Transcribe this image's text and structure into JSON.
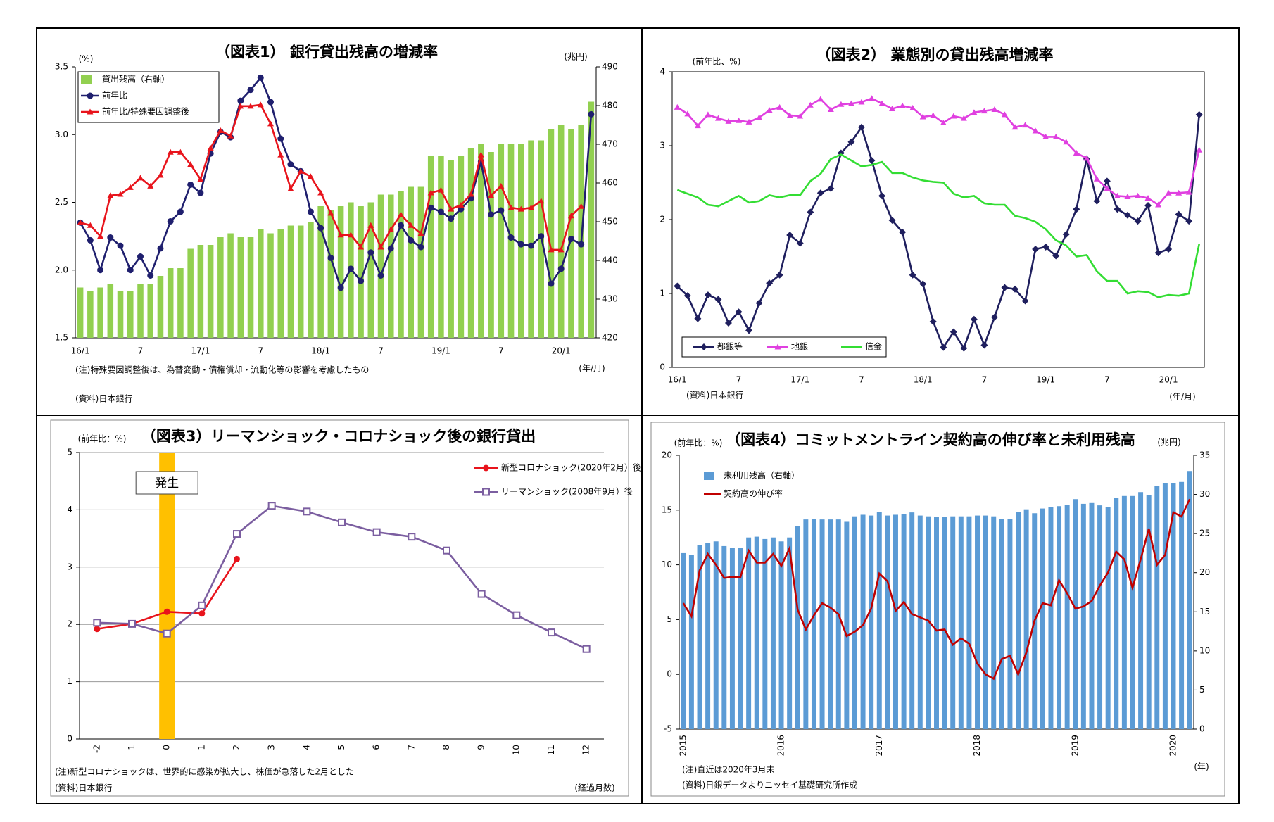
{
  "chart_data": [
    {
      "type": "combo",
      "title": "（図表1） 銀行貸出残高の増減率",
      "y_label": "(%)",
      "y2_label": "(兆円)",
      "x_label": "(年/月)",
      "notes": [
        "(注)特殊要因調整後は、為替変動・債権償却・流動化等の影響を考慮したもの",
        "(資料)日本銀行"
      ],
      "categories": [
        "16/1",
        null,
        null,
        null,
        null,
        null,
        "7",
        null,
        null,
        null,
        null,
        null,
        "17/1",
        null,
        null,
        null,
        null,
        null,
        "7",
        null,
        null,
        null,
        null,
        null,
        "18/1",
        null,
        null,
        null,
        null,
        null,
        "7",
        null,
        null,
        null,
        null,
        null,
        "19/1",
        null,
        null,
        null,
        null,
        null,
        "7",
        null,
        null,
        null,
        null,
        null,
        "20/1",
        null,
        null,
        null
      ],
      "ylim": [
        1.5,
        3.5
      ],
      "yticks": [
        1.5,
        {
          "value": 2,
          "label": "2.0"
        },
        2.5,
        {
          "value": 3,
          "label": "3.0"
        },
        3.5
      ],
      "y2lim": [
        420,
        490
      ],
      "y2ticks": [
        420,
        430,
        440,
        450,
        460,
        470,
        480,
        490
      ],
      "grid": false,
      "legend": "upper left",
      "series": [
        {
          "name": "貸出残高（右軸）",
          "type": "bar",
          "axis": "y2",
          "color": "#92d050",
          "values": [
            433,
            432,
            433,
            434,
            432,
            432,
            434,
            434,
            436,
            438,
            438,
            443,
            444,
            444,
            446,
            447,
            446,
            446,
            448,
            447,
            448,
            449,
            449,
            450,
            454,
            453,
            454,
            455,
            454,
            455,
            457,
            457,
            458,
            459,
            459,
            467,
            467,
            466,
            467,
            469,
            470,
            468,
            470,
            470,
            470,
            471,
            471,
            474,
            475,
            474,
            475,
            481
          ]
        },
        {
          "name": "前年比",
          "type": "line",
          "marker": "circle",
          "color": "#1f1f6e",
          "values": [
            2.35,
            2.22,
            2.0,
            2.24,
            2.18,
            2.0,
            2.1,
            1.96,
            2.16,
            2.36,
            2.43,
            2.63,
            2.57,
            2.86,
            3.02,
            2.98,
            3.25,
            3.33,
            3.42,
            3.24,
            2.97,
            2.78,
            2.73,
            2.43,
            2.31,
            2.09,
            1.87,
            2.01,
            1.92,
            2.13,
            1.96,
            2.16,
            2.33,
            2.22,
            2.17,
            2.46,
            2.43,
            2.38,
            2.45,
            2.53,
            2.8,
            2.41,
            2.44,
            2.24,
            2.19,
            2.18,
            2.25,
            1.9,
            2.01,
            2.23,
            2.19,
            3.15
          ]
        },
        {
          "name": "前年比/特殊要因調整後",
          "type": "line",
          "marker": "triangle",
          "color": "#e8141c",
          "values": [
            2.35,
            2.33,
            2.25,
            2.55,
            2.56,
            2.61,
            2.68,
            2.62,
            2.7,
            2.87,
            2.87,
            2.78,
            2.67,
            2.9,
            3.03,
            2.99,
            3.21,
            3.21,
            3.22,
            3.08,
            2.85,
            2.6,
            2.73,
            2.69,
            2.57,
            2.42,
            2.26,
            2.26,
            2.17,
            2.33,
            2.17,
            2.3,
            2.41,
            2.33,
            2.27,
            2.57,
            2.59,
            2.45,
            2.48,
            2.56,
            2.85,
            2.55,
            2.62,
            2.46,
            2.45,
            2.46,
            2.51,
            2.15,
            2.15,
            2.4,
            2.47,
            null
          ]
        }
      ]
    },
    {
      "type": "line",
      "title": "（図表2） 業態別の貸出残高増減率",
      "y_label": "(前年比、%)",
      "x_label": "(年/月)",
      "notes": [
        "(資料)日本銀行"
      ],
      "categories": [
        "16/1",
        null,
        null,
        null,
        null,
        null,
        "7",
        null,
        null,
        null,
        null,
        null,
        "17/1",
        null,
        null,
        null,
        null,
        null,
        "7",
        null,
        null,
        null,
        null,
        null,
        "18/1",
        null,
        null,
        null,
        null,
        null,
        "7",
        null,
        null,
        null,
        null,
        null,
        "19/1",
        null,
        null,
        null,
        null,
        null,
        "7",
        null,
        null,
        null,
        null,
        null,
        "20/1",
        null,
        null,
        null
      ],
      "ylim": [
        0,
        4
      ],
      "yticks": [
        0,
        1,
        2,
        3,
        4
      ],
      "grid": false,
      "legend": "lower left",
      "series": [
        {
          "name": "都銀等",
          "type": "line",
          "marker": "diamond",
          "color": "#1f1f5e",
          "values": [
            1.1,
            0.97,
            0.66,
            0.98,
            0.92,
            0.6,
            0.75,
            0.5,
            0.87,
            1.14,
            1.25,
            1.79,
            1.68,
            2.1,
            2.36,
            2.42,
            2.9,
            3.05,
            3.25,
            2.8,
            2.32,
            1.99,
            1.83,
            1.25,
            1.13,
            0.62,
            0.27,
            0.48,
            0.26,
            0.65,
            0.3,
            0.68,
            1.08,
            1.06,
            0.9,
            1.6,
            1.63,
            1.51,
            1.8,
            2.14,
            2.82,
            2.25,
            2.52,
            2.14,
            2.06,
            1.98,
            2.19,
            1.55,
            1.6,
            2.07,
            1.98,
            3.42
          ]
        },
        {
          "name": "地銀",
          "type": "line",
          "marker": "triangle",
          "color": "#e040e0",
          "values": [
            3.52,
            3.43,
            3.27,
            3.42,
            3.37,
            3.33,
            3.34,
            3.32,
            3.38,
            3.48,
            3.52,
            3.41,
            3.4,
            3.55,
            3.63,
            3.49,
            3.56,
            3.57,
            3.59,
            3.64,
            3.57,
            3.5,
            3.54,
            3.51,
            3.39,
            3.41,
            3.31,
            3.4,
            3.37,
            3.45,
            3.47,
            3.49,
            3.42,
            3.25,
            3.28,
            3.2,
            3.12,
            3.12,
            3.05,
            2.9,
            2.83,
            2.55,
            2.42,
            2.32,
            2.31,
            2.32,
            2.29,
            2.2,
            2.36,
            2.36,
            2.37,
            2.94
          ]
        },
        {
          "name": "信金",
          "type": "line",
          "marker": null,
          "color": "#33dd33",
          "values": [
            2.4,
            2.35,
            2.3,
            2.2,
            2.18,
            2.25,
            2.32,
            2.23,
            2.25,
            2.33,
            2.3,
            2.33,
            2.33,
            2.52,
            2.62,
            2.82,
            2.88,
            2.8,
            2.72,
            2.74,
            2.78,
            2.63,
            2.63,
            2.57,
            2.53,
            2.51,
            2.5,
            2.35,
            2.3,
            2.32,
            2.22,
            2.2,
            2.2,
            2.05,
            2.02,
            1.97,
            1.87,
            1.72,
            1.65,
            1.5,
            1.52,
            1.3,
            1.17,
            1.17,
            1.0,
            1.03,
            1.02,
            0.95,
            0.98,
            0.97,
            1.0,
            1.67
          ]
        }
      ]
    },
    {
      "type": "line",
      "title": "（図表3）リーマンショック・コロナショック後の銀行貸出",
      "y_label": "(前年比：%)",
      "x_label": "(経過月数)",
      "notes": [
        "(注)新型コロナショックは、世界的に感染が拡大し、株価が急落した2月とした",
        "(資料)日本銀行"
      ],
      "categories": [
        -2,
        -1,
        0,
        1,
        2,
        3,
        4,
        5,
        6,
        7,
        8,
        9,
        10,
        11,
        12
      ],
      "ylim": [
        0,
        5
      ],
      "yticks": [
        0,
        1,
        2,
        3,
        4,
        5
      ],
      "grid": true,
      "legend": "upper right",
      "annotations": [
        {
          "text": "発生",
          "x": 0,
          "color": "#ffc000"
        }
      ],
      "series": [
        {
          "name": "新型コロナショック(2020年2月）後",
          "type": "line",
          "marker": "circle",
          "color": "#e8141c",
          "values": [
            1.92,
            2.01,
            2.22,
            2.19,
            3.14,
            null,
            null,
            null,
            null,
            null,
            null,
            null,
            null,
            null,
            null
          ]
        },
        {
          "name": "リーマンショック(2008年9月）後",
          "type": "line",
          "marker": "square",
          "color": "#7b5ea0",
          "values": [
            2.03,
            2.01,
            1.84,
            2.33,
            3.58,
            4.07,
            3.97,
            3.78,
            3.61,
            3.53,
            3.29,
            2.53,
            2.16,
            1.86,
            1.57
          ]
        }
      ]
    },
    {
      "type": "combo",
      "title": "（図表4）コミットメントライン契約高の伸び率と未利用残高",
      "y_label": "(前年比：%)",
      "y2_label": "(兆円)",
      "x_label": "(年)",
      "notes": [
        "(注)直近は2020年3月末",
        "(資料)日銀データよりニッセイ基礎研究所作成"
      ],
      "categories": [
        "2015",
        null,
        null,
        null,
        null,
        null,
        null,
        null,
        null,
        null,
        null,
        null,
        "2016",
        null,
        null,
        null,
        null,
        null,
        null,
        null,
        null,
        null,
        null,
        null,
        "2017",
        null,
        null,
        null,
        null,
        null,
        null,
        null,
        null,
        null,
        null,
        null,
        "2018",
        null,
        null,
        null,
        null,
        null,
        null,
        null,
        null,
        null,
        null,
        null,
        "2019",
        null,
        null,
        null,
        null,
        null,
        null,
        null,
        null,
        null,
        null,
        null,
        "2020",
        null,
        null
      ],
      "ylim": [
        -5,
        20
      ],
      "yticks": [
        -5,
        0,
        5,
        10,
        15,
        20
      ],
      "y2lim": [
        0,
        35
      ],
      "y2ticks": [
        0,
        5,
        10,
        15,
        20,
        25,
        30,
        35
      ],
      "grid": false,
      "legend": "upper left",
      "series": [
        {
          "name": "未利用残高（右軸）",
          "type": "bar",
          "axis": "y2",
          "color": "#5b9bd5",
          "values": [
            22.5,
            22.3,
            23.5,
            23.8,
            24,
            23.4,
            23.2,
            23.2,
            24.5,
            24.6,
            24.3,
            24.5,
            24,
            24.5,
            26,
            26.8,
            26.9,
            26.8,
            26.8,
            26.8,
            26.5,
            27.2,
            27.4,
            27.3,
            27.8,
            27.3,
            27.4,
            27.5,
            27.7,
            27.3,
            27.2,
            27.1,
            27.1,
            27.2,
            27.2,
            27.2,
            27.3,
            27.3,
            27.2,
            26.9,
            26.9,
            27.8,
            28.1,
            27.6,
            28.2,
            28.4,
            28.5,
            28.7,
            29.4,
            28.8,
            28.9,
            28.6,
            28.4,
            29.6,
            29.8,
            29.8,
            30.3,
            29.9,
            31.1,
            31.4,
            31.4,
            31.6,
            33
          ]
        },
        {
          "name": "契約高の伸び率",
          "type": "line",
          "marker": null,
          "color": "#c00000",
          "values": [
            6.5,
            5.3,
            9.5,
            11,
            10,
            8.8,
            8.9,
            8.9,
            11.3,
            10.2,
            10.2,
            11,
            9.9,
            11.5,
            5.9,
            4.1,
            5.4,
            6.5,
            6.1,
            5.5,
            3.5,
            3.9,
            4.5,
            6,
            9.2,
            8.5,
            5.8,
            6.6,
            5.5,
            5.2,
            4.9,
            4,
            4.1,
            2.7,
            3.3,
            2.8,
            1,
            0,
            -0.4,
            1.4,
            1.7,
            0,
            2,
            4.9,
            6.5,
            6.3,
            8.6,
            7.4,
            6,
            6.2,
            6.7,
            8.1,
            9.3,
            11.2,
            10.5,
            7.9,
            10.5,
            13.3,
            10,
            10.9,
            14.8,
            14.4,
            16
          ]
        }
      ]
    }
  ]
}
